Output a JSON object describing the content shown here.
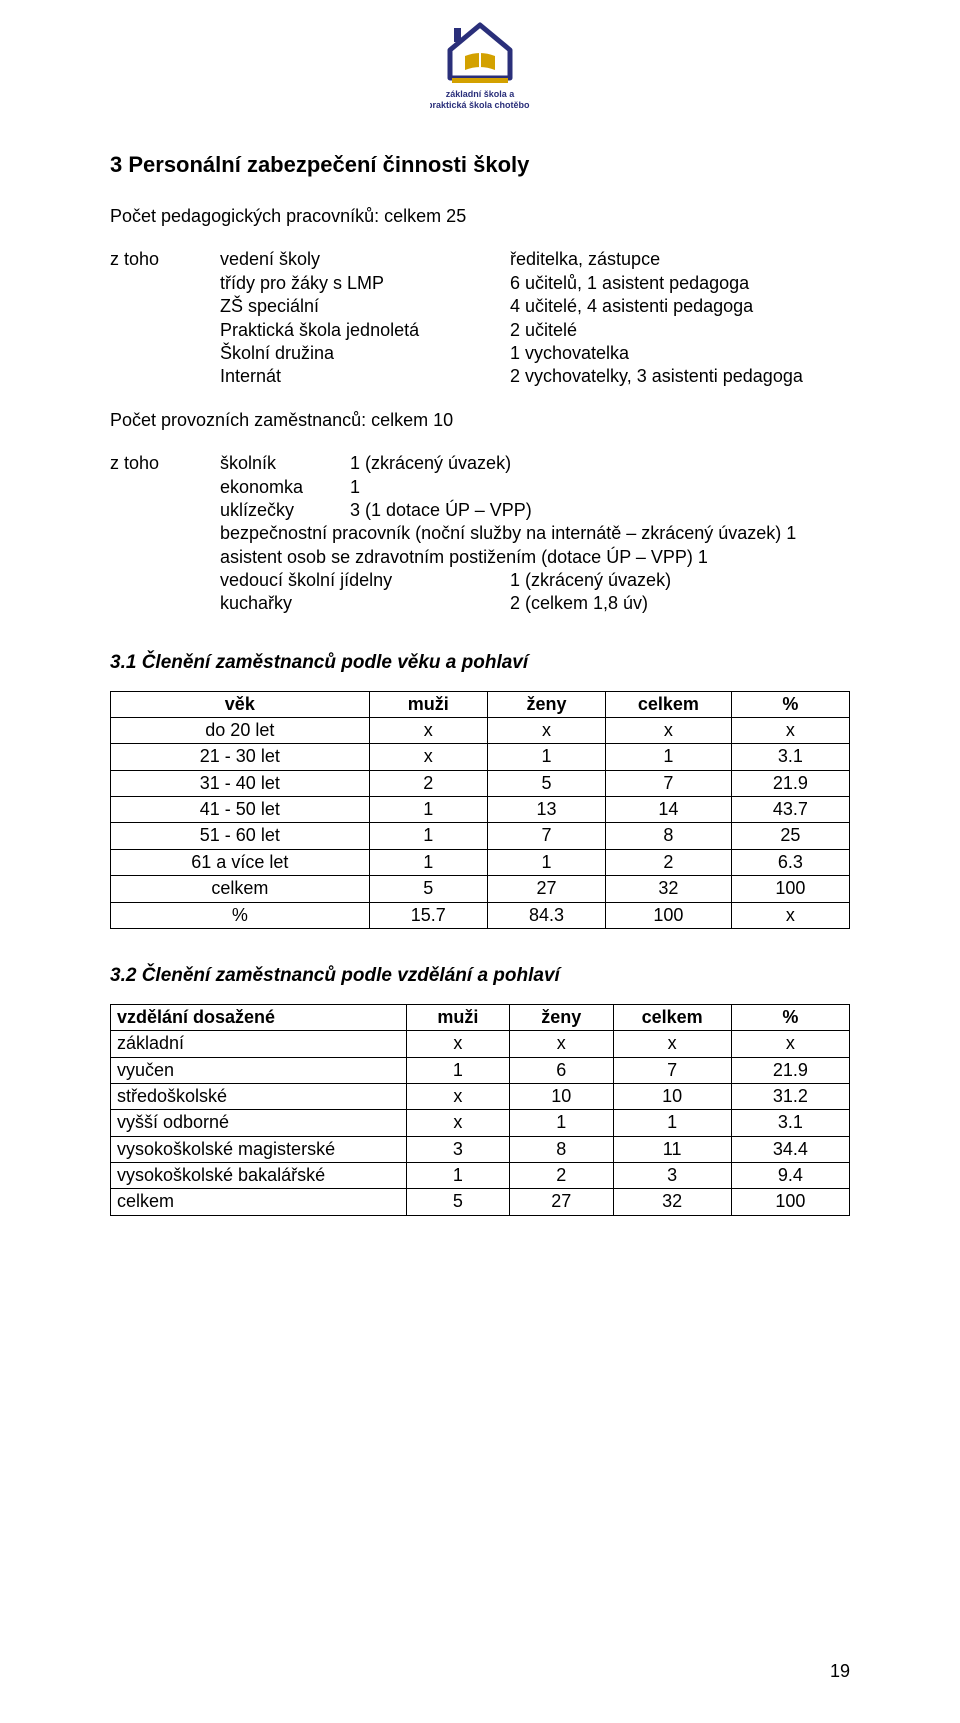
{
  "logo": {
    "colors": {
      "roof": "#2a2f7a",
      "wall": "#2a2f7a",
      "book": "#d3a100",
      "text": "#2a2f7a"
    },
    "caption_line1": "základní škola a",
    "caption_line2": "praktická škola chotěboř"
  },
  "section_title": "3 Personální zabezpečení činnosti školy",
  "line_ped": "Počet pedagogických pracovníků: celkem  25",
  "ztoho_label": "z toho",
  "roles": {
    "r1": {
      "k": "vedení školy",
      "v": "ředitelka, zástupce"
    },
    "r2": {
      "k": "třídy pro žáky s LMP",
      "v": "6 učitelů, 1 asistent pedagoga"
    },
    "r3": {
      "k": "ZŠ speciální",
      "v": "4 učitelé, 4 asistenti pedagoga"
    },
    "r4": {
      "k": "Praktická škola jednoletá",
      "v": "2 učitelé"
    },
    "r5": {
      "k": "Školní družina",
      "v": "1 vychovatelka"
    },
    "r6": {
      "k": "Internát",
      "v": "2 vychovatelky, 3 asistenti pedagoga"
    }
  },
  "line_prov": "Počet provozních zaměstnanců: celkem  10",
  "roles2": {
    "r1": {
      "k": "školník",
      "v": "1 (zkrácený úvazek)"
    },
    "r2": {
      "k": "ekonomka",
      "v": "1"
    },
    "r3": {
      "k": "uklízečky",
      "v": "3  (1 dotace ÚP – VPP)"
    }
  },
  "freelines": {
    "l1": "bezpečnostní pracovník (noční služby na internátě – zkrácený úvazek)   1",
    "l2": "asistent osob se zdravotním postižením (dotace ÚP – VPP)                       1",
    "l3a": "vedoucí školní jídelny",
    "l3b": "1 (zkrácený úvazek)",
    "l4a": "kuchařky",
    "l4b": "2 (celkem 1,8 úv)"
  },
  "sub1": "3.1 Členění zaměstnanců podle věku a pohlaví",
  "t1": {
    "headers": [
      "věk",
      "muži",
      "ženy",
      "celkem",
      "%"
    ],
    "rows": [
      [
        "do 20 let",
        "x",
        "x",
        "x",
        "x"
      ],
      [
        "21 - 30 let",
        "x",
        "1",
        "1",
        "3.1"
      ],
      [
        "31 - 40 let",
        "2",
        "5",
        "7",
        "21.9"
      ],
      [
        "41 - 50 let",
        "1",
        "13",
        "14",
        "43.7"
      ],
      [
        "51 - 60 let",
        "1",
        "7",
        "8",
        "25"
      ],
      [
        "61 a více let",
        "1",
        "1",
        "2",
        "6.3"
      ],
      [
        "celkem",
        "5",
        "27",
        "32",
        "100"
      ],
      [
        "%",
        "15.7",
        "84.3",
        "100",
        "x"
      ]
    ],
    "col_widths": [
      "35%",
      "16%",
      "16%",
      "17%",
      "16%"
    ]
  },
  "sub2": "3.2 Členění zaměstnanců podle vzdělání a pohlaví",
  "t2": {
    "headers": [
      "vzdělání dosažené",
      "muži",
      "ženy",
      "celkem",
      "%"
    ],
    "rows": [
      [
        "základní",
        "x",
        "x",
        "x",
        "x"
      ],
      [
        "vyučen",
        "1",
        "6",
        "7",
        "21.9"
      ],
      [
        "středoškolské",
        "x",
        "10",
        "10",
        "31.2"
      ],
      [
        "vyšší odborné",
        "x",
        "1",
        "1",
        "3.1"
      ],
      [
        "vysokoškolské magisterské",
        "3",
        "8",
        "11",
        "34.4"
      ],
      [
        "vysokoškolské bakalářské",
        "1",
        "2",
        "3",
        "9.4"
      ],
      [
        "celkem",
        "5",
        "27",
        "32",
        "100"
      ]
    ],
    "col_widths": [
      "40%",
      "14%",
      "14%",
      "16%",
      "16%"
    ]
  },
  "page_number": "19"
}
